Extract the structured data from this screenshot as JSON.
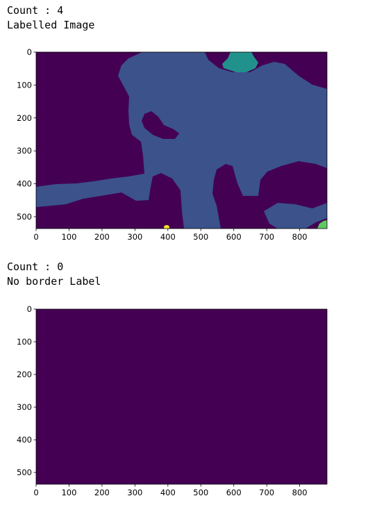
{
  "outputs": [
    {
      "count_line": "Count : 4",
      "title_line": "Labelled Image",
      "chart_data": {
        "type": "heatmap",
        "image_kind": "label map",
        "title": "",
        "xlabel": "",
        "ylabel": "",
        "xlim": [
          0,
          883
        ],
        "ylim": [
          536,
          0
        ],
        "x_ticks": [
          0,
          100,
          200,
          300,
          400,
          500,
          600,
          700,
          800
        ],
        "y_ticks": [
          0,
          100,
          200,
          300,
          400,
          500
        ],
        "colormap": "viridis",
        "colors": {
          "label_0": "#440154",
          "label_1": "#3b528b",
          "label_2": "#21918c",
          "label_3": "#5ec962",
          "label_4": "#fde725"
        },
        "regions_present": [
          "label_0",
          "label_1",
          "label_2",
          "label_3",
          "label_4"
        ]
      }
    },
    {
      "count_line": "Count : 0",
      "title_line": "No border Label",
      "chart_data": {
        "type": "heatmap",
        "image_kind": "label map",
        "title": "",
        "xlabel": "",
        "ylabel": "",
        "xlim": [
          0,
          883
        ],
        "ylim": [
          536,
          0
        ],
        "x_ticks": [
          0,
          100,
          200,
          300,
          400,
          500,
          600,
          700,
          800
        ],
        "y_ticks": [
          0,
          100,
          200,
          300,
          400,
          500
        ],
        "colormap": "viridis",
        "colors": {
          "label_0": "#440154"
        },
        "regions_present": [
          "label_0"
        ]
      }
    }
  ]
}
